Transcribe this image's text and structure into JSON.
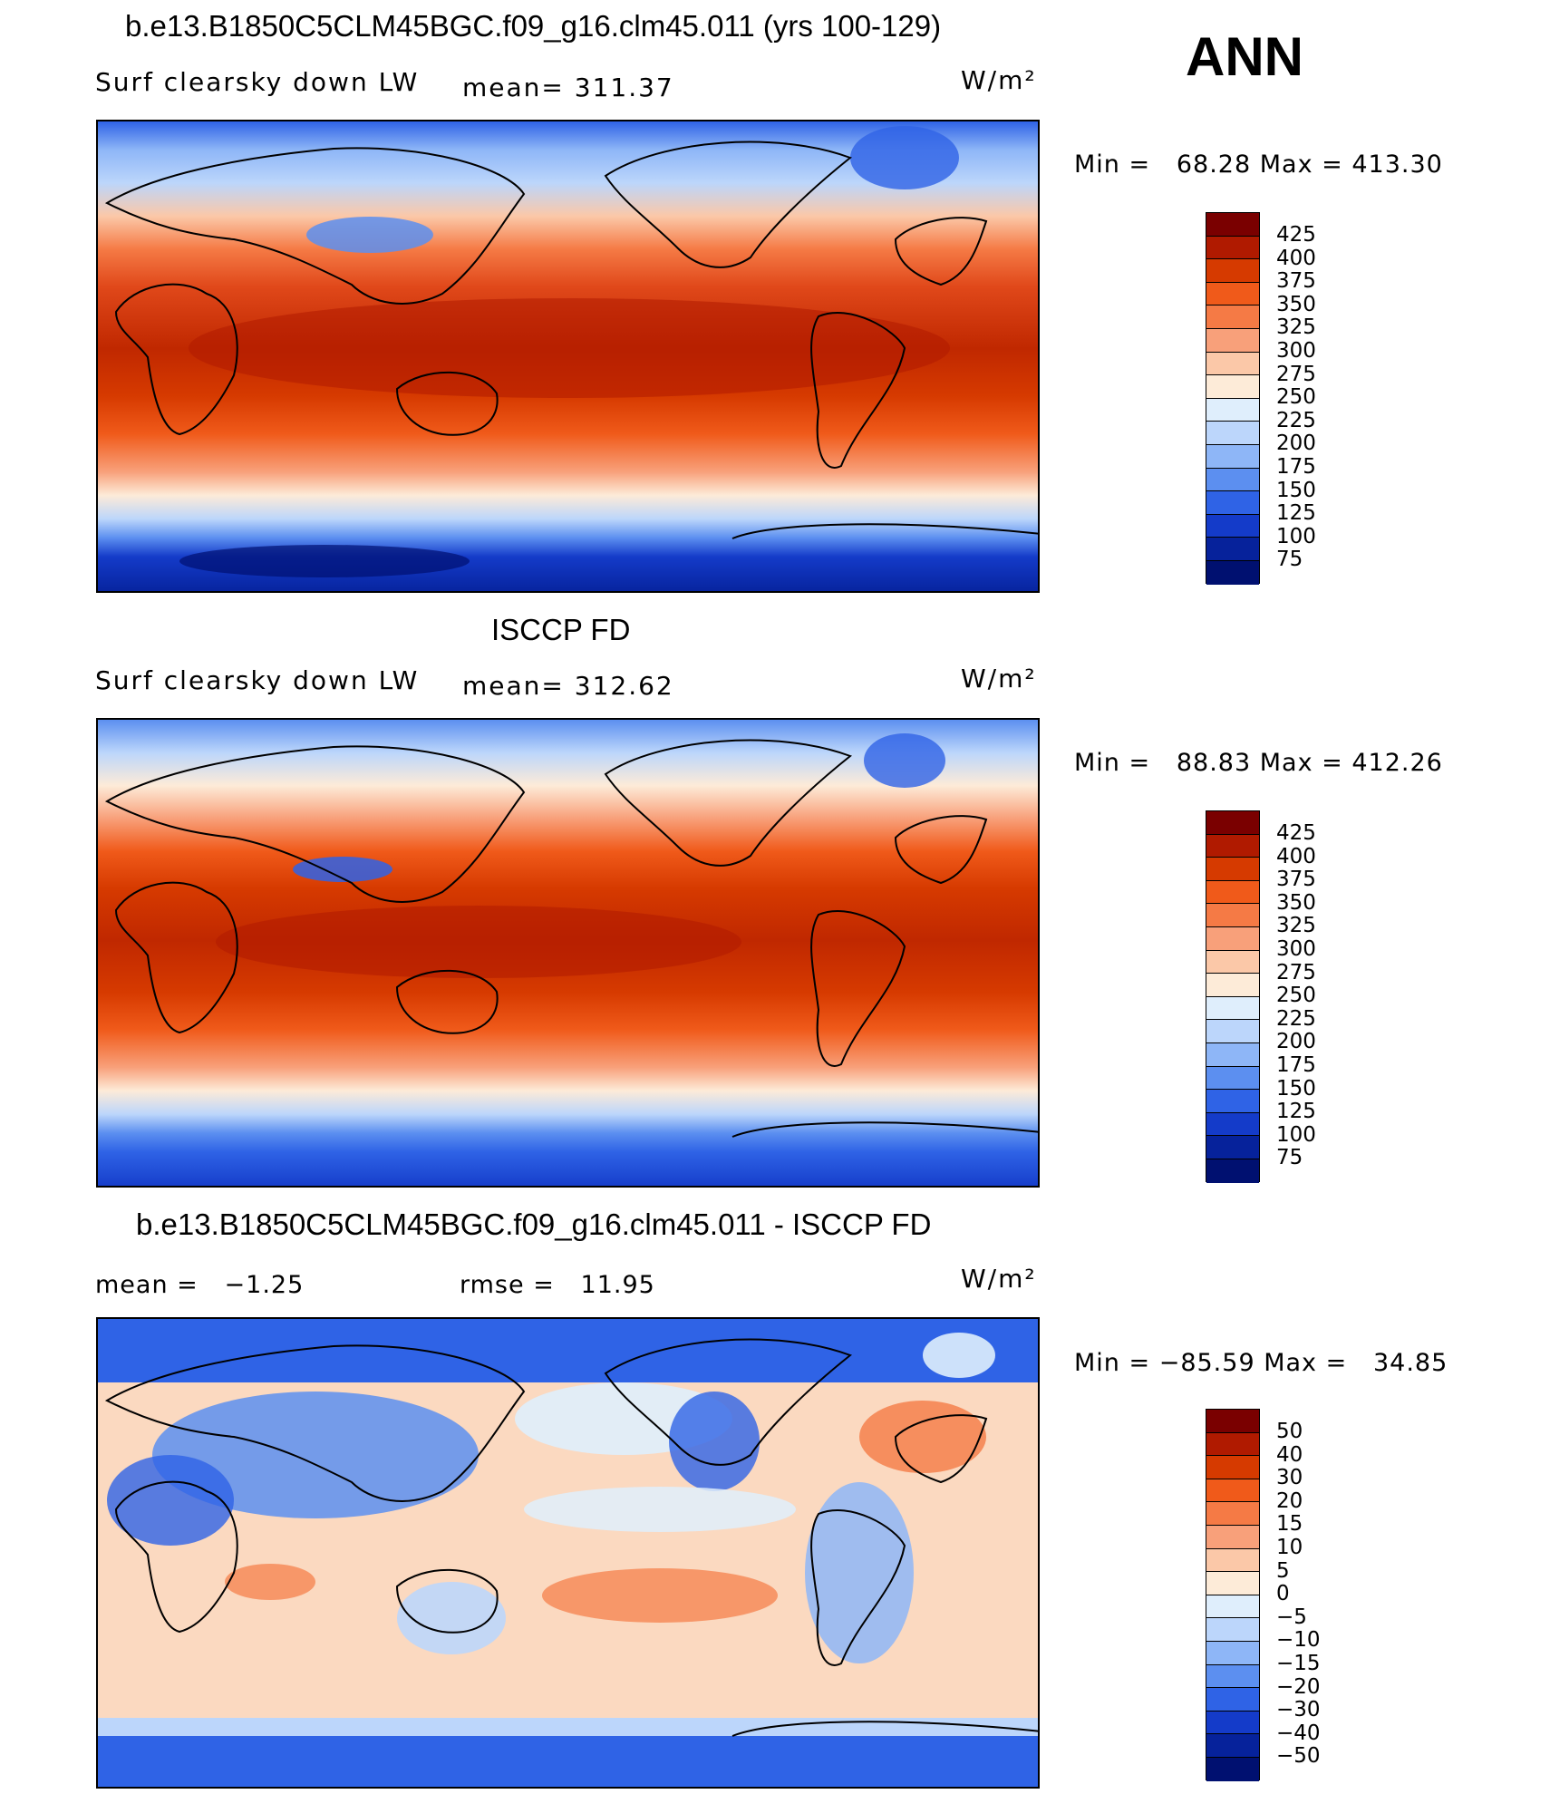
{
  "panels": [
    {
      "title": "b.e13.B1850C5CLM45BGC.f09_g16.clm45.011 (yrs 100-129)",
      "variable": "Surf clearsky down LW",
      "stat1": "mean= 311.37",
      "units": "W/m²",
      "minmax": "Min =   68.28 Max = 413.30",
      "levels": [
        "425",
        "400",
        "375",
        "350",
        "325",
        "300",
        "275",
        "250",
        "225",
        "200",
        "175",
        "150",
        "125",
        "100",
        "75"
      ]
    },
    {
      "title": "ISCCP FD",
      "variable": "Surf clearsky down LW",
      "stat1": "mean= 312.62",
      "units": "W/m²",
      "minmax": "Min =   88.83 Max = 412.26",
      "levels": [
        "425",
        "400",
        "375",
        "350",
        "325",
        "300",
        "275",
        "250",
        "225",
        "200",
        "175",
        "150",
        "125",
        "100",
        "75"
      ]
    },
    {
      "title": "b.e13.B1850C5CLM45BGC.f09_g16.clm45.011 - ISCCP FD",
      "mean_label": "mean =   −1.25",
      "rmse_label": "rmse =   11.95",
      "units": "W/m²",
      "minmax": "Min = −85.59 Max =   34.85",
      "levels": [
        "50",
        "40",
        "30",
        "20",
        "15",
        "10",
        "5",
        "0",
        "−5",
        "−10",
        "−15",
        "−20",
        "−30",
        "−40",
        "−50"
      ]
    }
  ],
  "season": "ANN",
  "colorbar": [
    "#7a0000",
    "#b01a00",
    "#d63a00",
    "#f05a1a",
    "#f57a45",
    "#f8a07a",
    "#fbc8a8",
    "#fdebd8",
    "#dfeefc",
    "#bcd6fb",
    "#8eb6f7",
    "#5c8ff0",
    "#2f63e6",
    "#143bc9",
    "#06229b",
    "#001070"
  ]
}
